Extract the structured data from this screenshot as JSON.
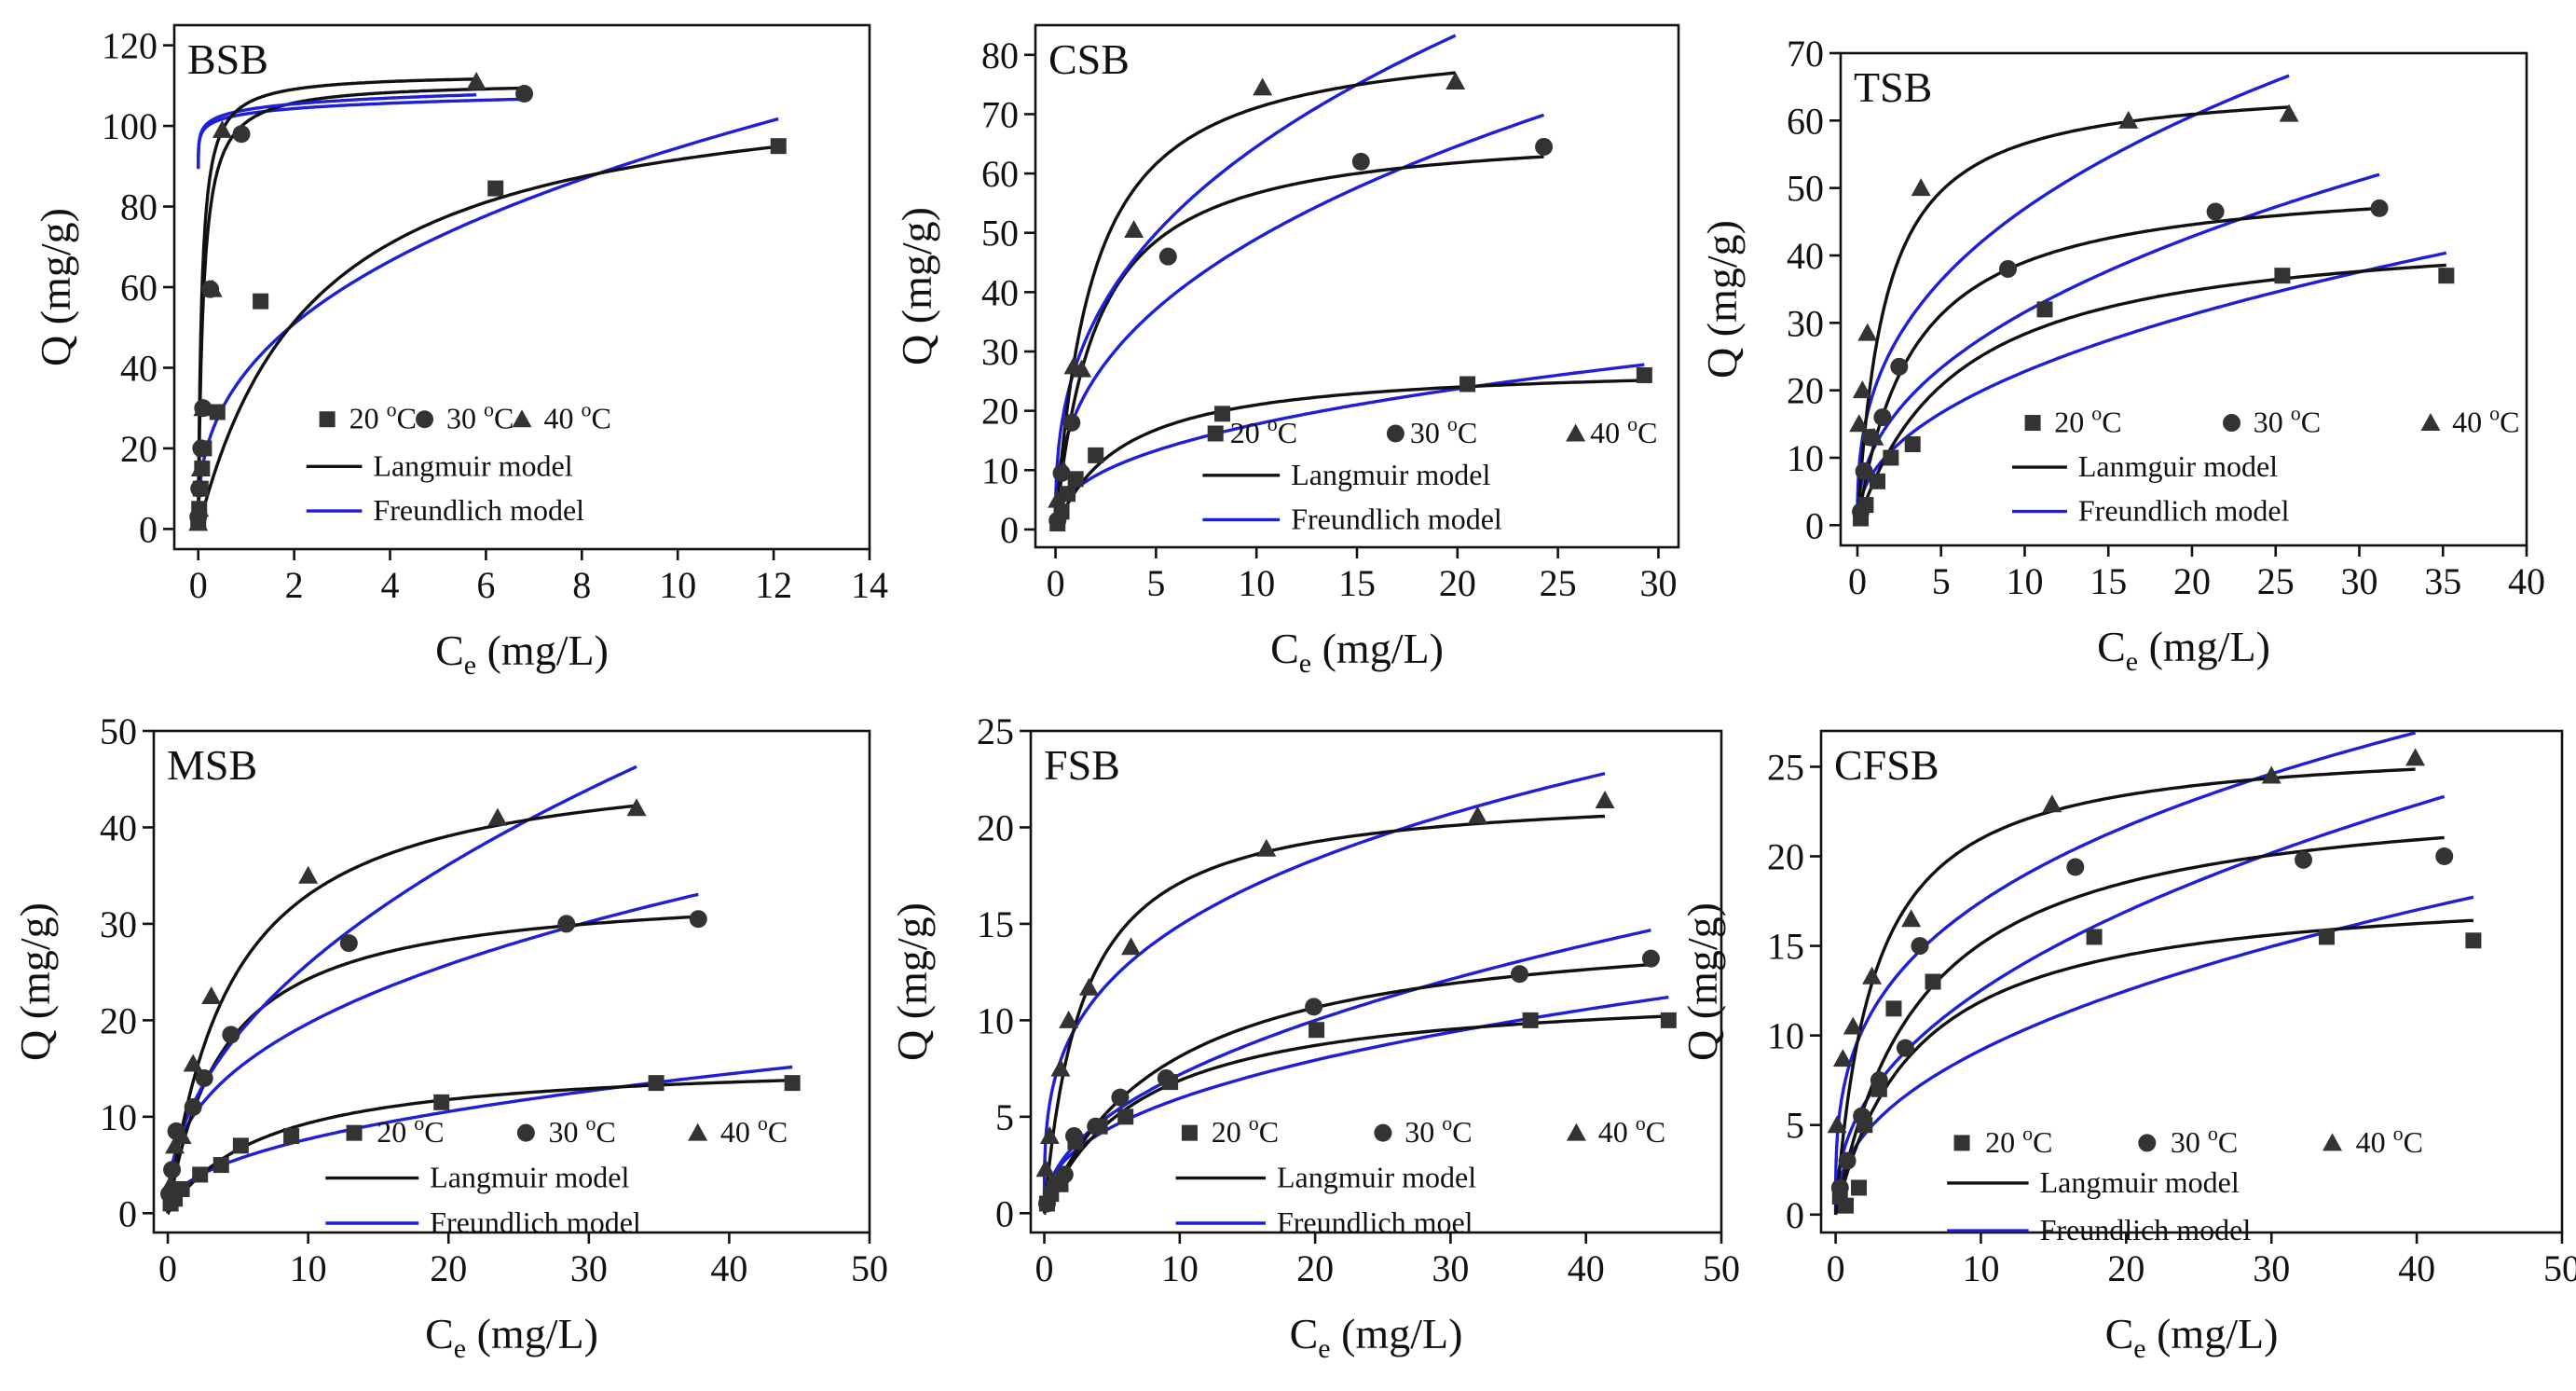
{
  "colors": {
    "langmuir": "#111111",
    "freundlich": "#1f1fd6",
    "points": "#333333"
  },
  "panels": [
    {
      "title": "BSB",
      "xlabel_main": "C",
      "xlabel_sub": "e",
      "xlabel_tail": " (mg/L)",
      "ylabel": "Q (mg/g)",
      "xlim": [
        -0.5,
        14
      ],
      "ylim": [
        -5,
        125
      ],
      "xticks": [
        0,
        2,
        4,
        6,
        8,
        10,
        12,
        14
      ],
      "yticks": [
        0,
        20,
        40,
        60,
        80,
        100,
        120
      ],
      "legend": {
        "series_labels": [
          "20 ",
          "30 ",
          "40 "
        ],
        "degree": "o",
        "unit": "C",
        "langmuir_label": "Langmuir model",
        "freundlich_label": "Freundlich model"
      },
      "series": [
        {
          "name": "20 °C",
          "marker": "square",
          "x": [
            0.0,
            0.02,
            0.05,
            0.08,
            0.12,
            0.4,
            1.3,
            6.2,
            12.1
          ],
          "y": [
            2,
            5,
            10,
            15,
            20,
            29,
            56.5,
            84.5,
            95
          ],
          "langmuir": {
            "qmax": 114,
            "kl": 0.41
          },
          "freundlich": {
            "kf": 39,
            "n": 2.6
          }
        },
        {
          "name": "30 °C",
          "marker": "circle",
          "x": [
            0.0,
            0.02,
            0.06,
            0.1,
            0.25,
            0.9,
            6.8
          ],
          "y": [
            3,
            10,
            20,
            30,
            59.5,
            98,
            108
          ],
          "langmuir": {
            "qmax": 111,
            "kl": 10
          },
          "freundlich": {
            "kf": 103,
            "n": 55
          }
        },
        {
          "name": "40 °C",
          "marker": "triangle",
          "x": [
            0.0,
            0.02,
            0.05,
            0.1,
            0.3,
            0.5,
            5.8
          ],
          "y": [
            1.5,
            5,
            15,
            30,
            59.5,
            99,
            111
          ],
          "langmuir": {
            "qmax": 113,
            "kl": 14
          },
          "freundlich": {
            "kf": 104,
            "n": 50
          }
        }
      ]
    },
    {
      "title": "CSB",
      "xlabel_main": "C",
      "xlabel_sub": "e",
      "xlabel_tail": " (mg/L)",
      "ylabel": "Q (mg/g)",
      "xlim": [
        -1,
        31
      ],
      "ylim": [
        -3,
        85
      ],
      "xticks": [
        0,
        5,
        10,
        15,
        20,
        25,
        30
      ],
      "yticks": [
        0,
        10,
        20,
        30,
        40,
        50,
        60,
        70,
        80
      ],
      "legend": {
        "series_labels": [
          "20 ",
          "30 ",
          "40 "
        ],
        "degree": "o",
        "unit": "C",
        "langmuir_label": "Langmuir model",
        "freundlich_label": "Freundlich model"
      },
      "series": [
        {
          "name": "20 °C",
          "marker": "square",
          "x": [
            0.1,
            0.3,
            0.6,
            1.0,
            2.0,
            8.3,
            20.5,
            29.3
          ],
          "y": [
            1,
            3,
            6,
            8.5,
            12.5,
            19.5,
            24.5,
            26
          ],
          "langmuir": {
            "qmax": 28,
            "kl": 0.3
          },
          "freundlich": {
            "kf": 6.8,
            "n": 2.4
          }
        },
        {
          "name": "30 °C",
          "marker": "circle",
          "x": [
            0.1,
            0.3,
            0.8,
            5.6,
            15.2,
            24.3
          ],
          "y": [
            1.5,
            9.5,
            18,
            46,
            62,
            64.5
          ],
          "langmuir": {
            "qmax": 68,
            "kl": 0.5
          },
          "freundlich": {
            "kf": 19.5,
            "n": 2.5
          }
        },
        {
          "name": "40 °C",
          "marker": "triangle",
          "x": [
            0.1,
            0.4,
            0.9,
            1.3,
            3.9,
            10.3,
            19.9
          ],
          "y": [
            5,
            10,
            27.5,
            27,
            50.5,
            74.5,
            75.5
          ],
          "langmuir": {
            "qmax": 84,
            "kl": 0.55
          },
          "freundlich": {
            "kf": 27.5,
            "n": 2.7
          }
        }
      ]
    },
    {
      "title": "TSB",
      "xlabel_main": "C",
      "xlabel_sub": "e",
      "xlabel_tail": " (mg/L)",
      "ylabel": "Q (mg/g)",
      "xlim": [
        -1,
        40
      ],
      "ylim": [
        -3,
        70
      ],
      "xticks": [
        0,
        5,
        10,
        15,
        20,
        25,
        30,
        35,
        40
      ],
      "yticks": [
        0,
        10,
        20,
        30,
        40,
        50,
        60,
        70
      ],
      "legend": {
        "series_labels": [
          "20 ",
          "30 ",
          "40 "
        ],
        "degree": "o",
        "unit": "C",
        "langmuir_label": "Lanmguir model",
        "freundlich_label": "Freundlich model"
      },
      "series": [
        {
          "name": "20 °C",
          "marker": "square",
          "x": [
            0.2,
            0.5,
            1.2,
            2.0,
            3.3,
            11.2,
            25.4,
            35.2
          ],
          "y": [
            1,
            3,
            6.5,
            10,
            12,
            32,
            37,
            37
          ],
          "langmuir": {
            "qmax": 45,
            "kl": 0.17
          },
          "freundlich": {
            "kf": 8.0,
            "n": 2.2
          }
        },
        {
          "name": "30 °C",
          "marker": "circle",
          "x": [
            0.2,
            0.4,
            0.8,
            1.5,
            2.5,
            9.0,
            21.4,
            31.2
          ],
          "y": [
            2,
            8,
            13,
            16,
            23.5,
            38,
            46.5,
            47
          ],
          "langmuir": {
            "qmax": 52,
            "kl": 0.3
          },
          "freundlich": {
            "kf": 11.5,
            "n": 2.28
          }
        },
        {
          "name": "40 °C",
          "marker": "triangle",
          "x": [
            0.1,
            0.3,
            0.6,
            1.0,
            3.8,
            16.2,
            25.8
          ],
          "y": [
            15,
            20,
            28.5,
            13,
            50,
            60,
            61
          ],
          "langmuir": {
            "qmax": 66,
            "kl": 0.6
          },
          "freundlich": {
            "kf": 20,
            "n": 2.7
          }
        }
      ]
    },
    {
      "title": "MSB",
      "xlabel_main": "C",
      "xlabel_sub": "e",
      "xlabel_tail": " (mg/L)",
      "ylabel": "Q (mg/g)",
      "xlim": [
        -1,
        50
      ],
      "ylim": [
        -2,
        50
      ],
      "xticks": [
        0,
        10,
        20,
        30,
        40,
        50
      ],
      "yticks": [
        0,
        10,
        20,
        30,
        40,
        50
      ],
      "legend": {
        "series_labels": [
          "20 ",
          "30 ",
          "40 "
        ],
        "degree": "o",
        "unit": "C",
        "langmuir_label": "Langmuir model",
        "freundlich_label": "Freundlich model"
      },
      "series": [
        {
          "name": "20 °C",
          "marker": "square",
          "x": [
            0.2,
            0.5,
            1.0,
            2.3,
            3.8,
            5.2,
            8.8,
            19.5,
            34.8,
            44.5
          ],
          "y": [
            1,
            1.5,
            2.5,
            4,
            5,
            7,
            8,
            11.5,
            13.5,
            13.5
          ],
          "langmuir": {
            "qmax": 16,
            "kl": 0.14
          },
          "freundlich": {
            "kf": 2.7,
            "n": 2.2
          }
        },
        {
          "name": "30 °C",
          "marker": "circle",
          "x": [
            0.1,
            0.3,
            0.6,
            1.8,
            2.6,
            4.5,
            12.9,
            28.4,
            37.8
          ],
          "y": [
            2,
            4.5,
            8.5,
            11,
            14,
            18.5,
            28,
            30,
            30.5
          ],
          "langmuir": {
            "qmax": 34,
            "kl": 0.25
          },
          "freundlich": {
            "kf": 8.0,
            "n": 2.56
          }
        },
        {
          "name": "40 °C",
          "marker": "triangle",
          "x": [
            0.2,
            0.5,
            1.0,
            1.8,
            3.1,
            10.0,
            23.5,
            33.4
          ],
          "y": [
            3,
            7,
            8,
            15.5,
            22.5,
            35,
            41,
            42
          ],
          "langmuir": {
            "qmax": 48,
            "kl": 0.22
          },
          "freundlich": {
            "kf": 8.5,
            "n": 2.07
          }
        }
      ]
    },
    {
      "title": "FSB",
      "xlabel_main": "C",
      "xlabel_sub": "e",
      "xlabel_tail": " (mg/L)",
      "ylabel": "Q (mg/g)",
      "xlim": [
        -1,
        50
      ],
      "ylim": [
        -1,
        25
      ],
      "xticks": [
        0,
        10,
        20,
        30,
        40,
        50
      ],
      "yticks": [
        0,
        5,
        10,
        15,
        20,
        25
      ],
      "legend": {
        "series_labels": [
          "20 ",
          "30 ",
          "40 "
        ],
        "degree": "o",
        "unit": "C",
        "langmuir_label": "Langmuir model",
        "freundlich_label": "Freundlich moel"
      },
      "series": [
        {
          "name": "20 °C",
          "marker": "square",
          "x": [
            0.2,
            0.5,
            1.2,
            2.3,
            4.1,
            6.0,
            9.3,
            20.1,
            35.9,
            46.1
          ],
          "y": [
            0.5,
            1,
            1.5,
            3.7,
            4.5,
            5,
            6.8,
            9.5,
            10,
            10
          ],
          "langmuir": {
            "qmax": 11.8,
            "kl": 0.14
          },
          "freundlich": {
            "kf": 2.3,
            "n": 2.42
          }
        },
        {
          "name": "30 °C",
          "marker": "circle",
          "x": [
            0.2,
            0.8,
            1.5,
            2.2,
            3.8,
            5.6,
            9.0,
            19.9,
            35.1,
            44.8
          ],
          "y": [
            0.5,
            1.5,
            2,
            4,
            4.5,
            6,
            7,
            10.7,
            12.4,
            13.2
          ],
          "langmuir": {
            "qmax": 15.5,
            "kl": 0.11
          },
          "freundlich": {
            "kf": 2.4,
            "n": 2.1
          }
        },
        {
          "name": "40 °C",
          "marker": "triangle",
          "x": [
            0.1,
            0.4,
            1.2,
            1.8,
            3.3,
            6.4,
            16.4,
            32.0,
            41.4
          ],
          "y": [
            2.3,
            4,
            7.5,
            10,
            11.7,
            13.8,
            18.9,
            20.6,
            21.4
          ],
          "langmuir": {
            "qmax": 22,
            "kl": 0.35
          },
          "freundlich": {
            "kf": 7.5,
            "n": 3.35
          }
        }
      ]
    },
    {
      "title": "CFSB",
      "xlabel_main": "C",
      "xlabel_sub": "e",
      "xlabel_tail": " (mg/L)",
      "ylabel": "Q (mg/g)",
      "xlim": [
        -1,
        50
      ],
      "ylim": [
        -1,
        27
      ],
      "xticks": [
        0,
        10,
        20,
        30,
        40,
        50
      ],
      "yticks": [
        0,
        5,
        10,
        15,
        20,
        25
      ],
      "legend": {
        "series_labels": [
          "20 ",
          "30 ",
          "40 "
        ],
        "degree": "o",
        "unit": "C",
        "langmuir_label": "Langmuir model",
        "freundlich_label": "Freundlich model"
      },
      "series": [
        {
          "name": "20 °C",
          "marker": "square",
          "x": [
            0.3,
            0.7,
            1.6,
            2.0,
            3.0,
            4.0,
            6.7,
            17.8,
            33.8,
            43.9
          ],
          "y": [
            1,
            0.5,
            1.5,
            5,
            7,
            11.5,
            13,
            15.5,
            15.5,
            15.3
          ],
          "langmuir": {
            "qmax": 18.5,
            "kl": 0.18
          },
          "freundlich": {
            "kf": 3.3,
            "n": 2.25
          }
        },
        {
          "name": "30 °C",
          "marker": "circle",
          "x": [
            0.3,
            0.8,
            1.8,
            3.0,
            4.8,
            5.8,
            16.5,
            32.2,
            41.9
          ],
          "y": [
            1.5,
            3,
            5.5,
            7.5,
            9.3,
            15,
            19.4,
            19.8,
            20
          ],
          "langmuir": {
            "qmax": 24,
            "kl": 0.17
          },
          "freundlich": {
            "kf": 4.6,
            "n": 2.3
          }
        },
        {
          "name": "40 °C",
          "marker": "triangle",
          "x": [
            0.1,
            0.5,
            1.2,
            2.5,
            5.2,
            14.9,
            30.0,
            39.9
          ],
          "y": [
            5,
            8.7,
            10.5,
            13.3,
            16.5,
            22.9,
            24.5,
            25.5
          ],
          "langmuir": {
            "qmax": 26.5,
            "kl": 0.38
          },
          "freundlich": {
            "kf": 8.5,
            "n": 3.2
          }
        }
      ]
    }
  ]
}
